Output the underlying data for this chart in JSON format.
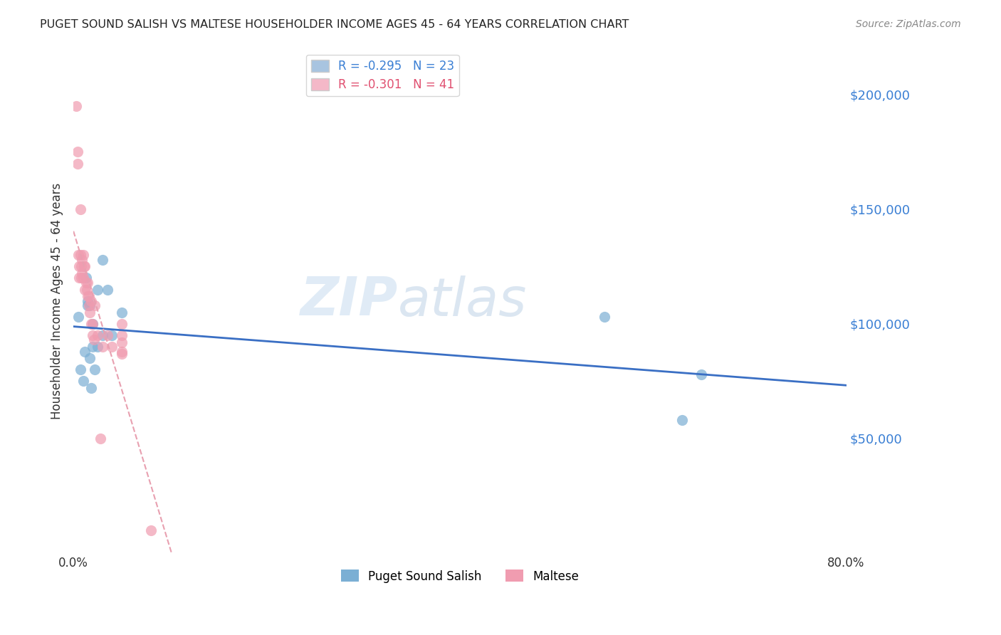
{
  "title": "PUGET SOUND SALISH VS MALTESE HOUSEHOLDER INCOME AGES 45 - 64 YEARS CORRELATION CHART",
  "source": "Source: ZipAtlas.com",
  "ylabel": "Householder Income Ages 45 - 64 years",
  "xlim": [
    0.0,
    0.8
  ],
  "ylim": [
    0,
    220000
  ],
  "xticks": [
    0.0,
    0.1,
    0.2,
    0.3,
    0.4,
    0.5,
    0.6,
    0.7,
    0.8
  ],
  "xticklabels": [
    "0.0%",
    "",
    "",
    "",
    "",
    "",
    "",
    "",
    "80.0%"
  ],
  "yticks_right": [
    50000,
    100000,
    150000,
    200000
  ],
  "ytick_labels_right": [
    "$50,000",
    "$100,000",
    "$150,000",
    "$200,000"
  ],
  "legend_entries": [
    {
      "label": "R = -0.295   N = 23",
      "color": "#a8c4e0"
    },
    {
      "label": "R = -0.301   N = 41",
      "color": "#f4b8c8"
    }
  ],
  "puget_color": "#7bafd4",
  "maltese_color": "#f09cb0",
  "puget_line_color": "#3a6fc4",
  "maltese_line_color": "#e8a0b0",
  "grid_color": "#cccccc",
  "background_color": "#ffffff",
  "watermark_zip": "ZIP",
  "watermark_atlas": "atlas",
  "puget_x": [
    0.005,
    0.007,
    0.01,
    0.012,
    0.013,
    0.015,
    0.015,
    0.017,
    0.017,
    0.018,
    0.02,
    0.02,
    0.022,
    0.025,
    0.025,
    0.03,
    0.03,
    0.035,
    0.04,
    0.05,
    0.55,
    0.63,
    0.65
  ],
  "puget_y": [
    103000,
    80000,
    75000,
    88000,
    120000,
    108000,
    110000,
    108000,
    85000,
    72000,
    100000,
    90000,
    80000,
    90000,
    115000,
    95000,
    128000,
    115000,
    95000,
    105000,
    103000,
    58000,
    78000
  ],
  "maltese_x": [
    0.003,
    0.004,
    0.004,
    0.005,
    0.006,
    0.006,
    0.007,
    0.007,
    0.008,
    0.008,
    0.009,
    0.009,
    0.01,
    0.01,
    0.011,
    0.012,
    0.012,
    0.013,
    0.014,
    0.015,
    0.015,
    0.016,
    0.016,
    0.017,
    0.018,
    0.018,
    0.02,
    0.02,
    0.021,
    0.022,
    0.025,
    0.028,
    0.03,
    0.035,
    0.04,
    0.05,
    0.05,
    0.05,
    0.05,
    0.05,
    0.08
  ],
  "maltese_y": [
    195000,
    175000,
    170000,
    130000,
    125000,
    120000,
    150000,
    130000,
    125000,
    120000,
    128000,
    122000,
    130000,
    120000,
    125000,
    125000,
    115000,
    118000,
    115000,
    118000,
    112000,
    112000,
    108000,
    105000,
    110000,
    100000,
    100000,
    95000,
    93000,
    108000,
    95000,
    50000,
    90000,
    95000,
    90000,
    100000,
    95000,
    92000,
    88000,
    87000,
    10000
  ],
  "legend_label_color_1": "#3a7fd4",
  "legend_label_color_2": "#e05070"
}
